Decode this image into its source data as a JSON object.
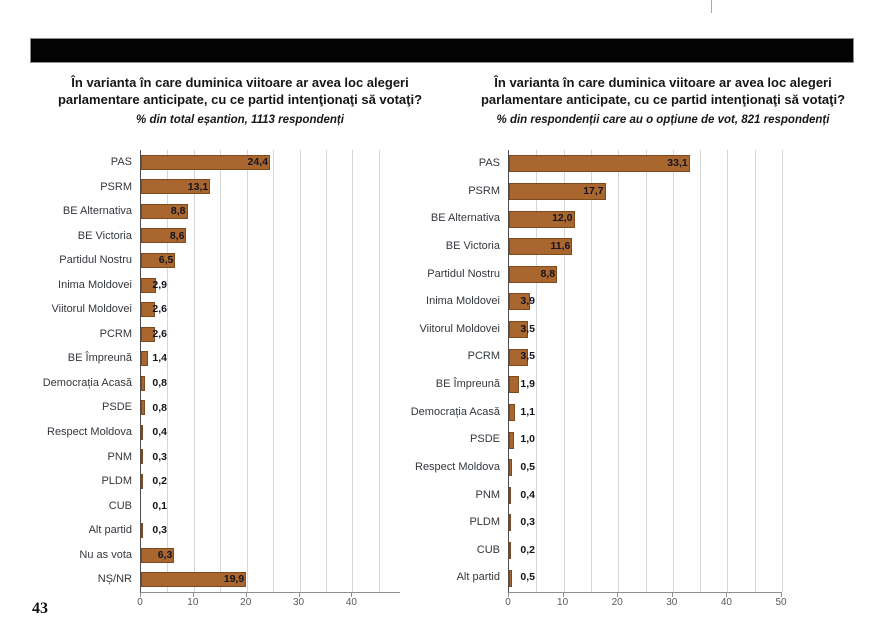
{
  "page": {
    "page_number": "43"
  },
  "chart_data": [
    {
      "type": "bar",
      "orientation": "horizontal",
      "title": "În varianta în care duminica viitoare ar avea loc alegeri parlamentare anticipate, cu ce partid intenţionaţi să votaţi?",
      "subtitle": "% din total eșantion, 1113 respondenți",
      "categories": [
        "PAS",
        "PSRM",
        "BE Alternativa",
        "BE Victoria",
        "Partidul Nostru",
        "Inima Moldovei",
        "Viitorul Moldovei",
        "PCRM",
        "BE Împreună",
        "Democrația Acasă",
        "PSDE",
        "Respect Moldova",
        "PNM",
        "PLDM",
        "CUB",
        "Alt partid",
        "Nu as vota",
        "NȘ/NR"
      ],
      "values": [
        24.4,
        13.1,
        8.8,
        8.6,
        6.5,
        2.9,
        2.6,
        2.6,
        1.4,
        0.8,
        0.8,
        0.4,
        0.3,
        0.2,
        0.1,
        0.3,
        6.3,
        19.9
      ],
      "labels": [
        "24,4",
        "13,1",
        "8,8",
        "8,6",
        "6,5",
        "2,9",
        "2,6",
        "2,6",
        "1,4",
        "0,8",
        "0,8",
        "0,4",
        "0,3",
        "0,2",
        "0,1",
        "0,3",
        "6,3",
        "19,9"
      ],
      "xlabel": "",
      "ylabel": "",
      "xlim": [
        0,
        49
      ],
      "xticks": [
        0,
        10,
        20,
        30,
        40
      ],
      "gridline_interval": 5,
      "grid": "on",
      "legend": "none",
      "bar_color": "#A9672F",
      "bar_border_color": "#7E4B1D"
    },
    {
      "type": "bar",
      "orientation": "horizontal",
      "title": "În varianta în care duminica viitoare ar avea loc alegeri parlamentare anticipate, cu ce partid intenţionaţi să votaţi?",
      "subtitle": "% din respondenții care au o opțiune de vot, 821 respondenți",
      "categories": [
        "PAS",
        "PSRM",
        "BE Alternativa",
        "BE Victoria",
        "Partidul Nostru",
        "Inima Moldovei",
        "Viitorul Moldovei",
        "PCRM",
        "BE Împreună",
        "Democrația Acasă",
        "PSDE",
        "Respect Moldova",
        "PNM",
        "PLDM",
        "CUB",
        "Alt partid"
      ],
      "values": [
        33.1,
        17.7,
        12.0,
        11.6,
        8.8,
        3.9,
        3.5,
        3.5,
        1.9,
        1.1,
        1.0,
        0.5,
        0.4,
        0.3,
        0.2,
        0.5
      ],
      "labels": [
        "33,1",
        "17,7",
        "12,0",
        "11,6",
        "8,8",
        "3,9",
        "3,5",
        "3,5",
        "1,9",
        "1,1",
        "1,0",
        "0,5",
        "0,4",
        "0,3",
        "0,2",
        "0,5"
      ],
      "xlabel": "",
      "ylabel": "",
      "xlim": [
        0,
        50
      ],
      "xticks": [
        0,
        10,
        20,
        30,
        40,
        50
      ],
      "gridline_interval": 5,
      "grid": "on",
      "legend": "none",
      "bar_color": "#A9672F",
      "bar_border_color": "#7E4B1D"
    }
  ]
}
